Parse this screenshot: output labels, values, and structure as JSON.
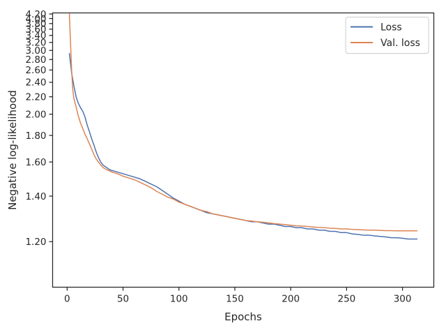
{
  "chart_data": {
    "type": "line",
    "title": "",
    "xlabel": "Epochs",
    "ylabel": "Negative log-likelihood",
    "xlim": [
      -13,
      328
    ],
    "ylim": [
      1.05,
      4.25
    ],
    "yscale": "reciprocal",
    "grid": false,
    "legend_position": "top-right",
    "x_ticks": [
      0,
      50,
      100,
      150,
      200,
      250,
      300
    ],
    "x_tick_labels": [
      "0",
      "50",
      "100",
      "150",
      "200",
      "250",
      "300"
    ],
    "y_ticks": [
      1.2,
      1.4,
      1.6,
      1.8,
      2.0,
      2.2,
      2.4,
      2.6,
      2.8,
      3.0,
      3.2,
      3.4,
      3.6,
      3.8,
      4.0,
      4.2
    ],
    "y_tick_labels": [
      "1.20",
      "1.40",
      "1.60",
      "1.80",
      "2.00",
      "2.20",
      "2.40",
      "2.60",
      "2.80",
      "3.00",
      "3.20",
      "3.40",
      "3.60",
      "3.80",
      "4.00",
      "4.20"
    ],
    "series": [
      {
        "name": "Loss",
        "color": "#4c72b0",
        "x": [
          2,
          4,
          6,
          8,
          10,
          12,
          14,
          16,
          18,
          20,
          22,
          24,
          26,
          28,
          30,
          32,
          34,
          36,
          38,
          40,
          45,
          50,
          55,
          60,
          65,
          70,
          75,
          80,
          85,
          90,
          95,
          100,
          105,
          110,
          115,
          120,
          125,
          130,
          135,
          140,
          145,
          150,
          155,
          160,
          165,
          170,
          175,
          180,
          185,
          190,
          195,
          200,
          205,
          210,
          215,
          220,
          225,
          230,
          235,
          240,
          245,
          250,
          255,
          260,
          265,
          270,
          275,
          280,
          285,
          290,
          295,
          300,
          305,
          310,
          313
        ],
        "values": [
          2.93,
          2.55,
          2.35,
          2.2,
          2.12,
          2.07,
          2.03,
          1.97,
          1.89,
          1.83,
          1.77,
          1.72,
          1.67,
          1.63,
          1.6,
          1.58,
          1.57,
          1.56,
          1.55,
          1.545,
          1.535,
          1.525,
          1.515,
          1.505,
          1.495,
          1.48,
          1.465,
          1.45,
          1.43,
          1.41,
          1.39,
          1.375,
          1.36,
          1.35,
          1.34,
          1.33,
          1.32,
          1.315,
          1.31,
          1.305,
          1.3,
          1.295,
          1.29,
          1.285,
          1.28,
          1.28,
          1.275,
          1.27,
          1.27,
          1.265,
          1.26,
          1.26,
          1.255,
          1.255,
          1.25,
          1.25,
          1.245,
          1.245,
          1.24,
          1.24,
          1.235,
          1.235,
          1.23,
          1.228,
          1.225,
          1.225,
          1.222,
          1.22,
          1.218,
          1.215,
          1.215,
          1.213,
          1.21,
          1.21,
          1.21
        ]
      },
      {
        "name": "Val. loss",
        "color": "#dd8452",
        "x": [
          2,
          3,
          4,
          5,
          6,
          8,
          10,
          12,
          14,
          16,
          18,
          20,
          22,
          24,
          26,
          28,
          30,
          32,
          34,
          36,
          38,
          40,
          45,
          50,
          55,
          60,
          65,
          70,
          75,
          80,
          85,
          90,
          95,
          100,
          105,
          110,
          115,
          120,
          125,
          130,
          135,
          140,
          145,
          150,
          155,
          160,
          165,
          170,
          175,
          180,
          185,
          190,
          195,
          200,
          205,
          210,
          215,
          220,
          225,
          230,
          235,
          240,
          245,
          250,
          255,
          260,
          265,
          270,
          275,
          280,
          285,
          290,
          295,
          300,
          305,
          310,
          313
        ],
        "values": [
          4.2,
          3.2,
          2.6,
          2.3,
          2.18,
          2.08,
          1.98,
          1.91,
          1.86,
          1.81,
          1.77,
          1.73,
          1.69,
          1.65,
          1.62,
          1.6,
          1.58,
          1.565,
          1.555,
          1.548,
          1.542,
          1.535,
          1.525,
          1.51,
          1.5,
          1.49,
          1.475,
          1.46,
          1.445,
          1.425,
          1.41,
          1.395,
          1.385,
          1.37,
          1.36,
          1.35,
          1.34,
          1.33,
          1.325,
          1.315,
          1.31,
          1.305,
          1.3,
          1.295,
          1.29,
          1.285,
          1.283,
          1.28,
          1.278,
          1.275,
          1.272,
          1.27,
          1.268,
          1.265,
          1.263,
          1.262,
          1.26,
          1.258,
          1.256,
          1.255,
          1.253,
          1.252,
          1.25,
          1.25,
          1.248,
          1.247,
          1.246,
          1.245,
          1.245,
          1.244,
          1.243,
          1.243,
          1.242,
          1.242,
          1.242,
          1.242,
          1.242
        ]
      }
    ]
  }
}
